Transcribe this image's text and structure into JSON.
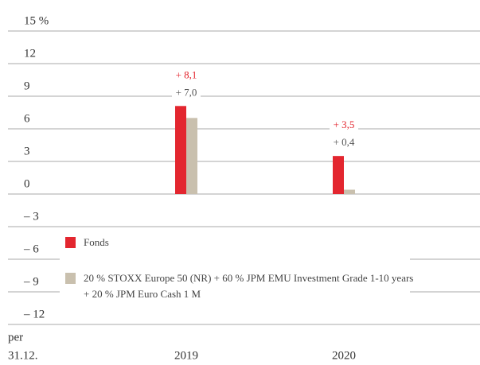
{
  "chart_data": {
    "type": "bar",
    "categories": [
      "2019",
      "2020"
    ],
    "x_label": [
      "per",
      "31.12."
    ],
    "series": [
      {
        "name": "Fonds",
        "color": "#e3262f",
        "values": [
          8.1,
          3.5
        ],
        "value_labels": [
          "+ 8,1",
          "+ 3,5"
        ]
      },
      {
        "name": "20 % STOXX Europe 50 (NR) + 60 % JPM EMU Investment Grade 1-10 years + 20 % JPM Euro Cash 1 M",
        "color": "#c9c0ae",
        "values": [
          7.0,
          0.4
        ],
        "value_labels": [
          "+ 7,0",
          "+ 0,4"
        ]
      }
    ],
    "ylim": [
      -12,
      15
    ],
    "yticks": [
      {
        "value": 15,
        "label": "15 %"
      },
      12,
      9,
      6,
      3,
      0,
      {
        "value": -3,
        "label": "– 3"
      },
      {
        "value": -6,
        "label": "– 6"
      },
      {
        "value": -9,
        "label": "– 9"
      },
      {
        "value": -12,
        "label": "– 12"
      }
    ],
    "grid": true,
    "legend": "bottom-left"
  }
}
